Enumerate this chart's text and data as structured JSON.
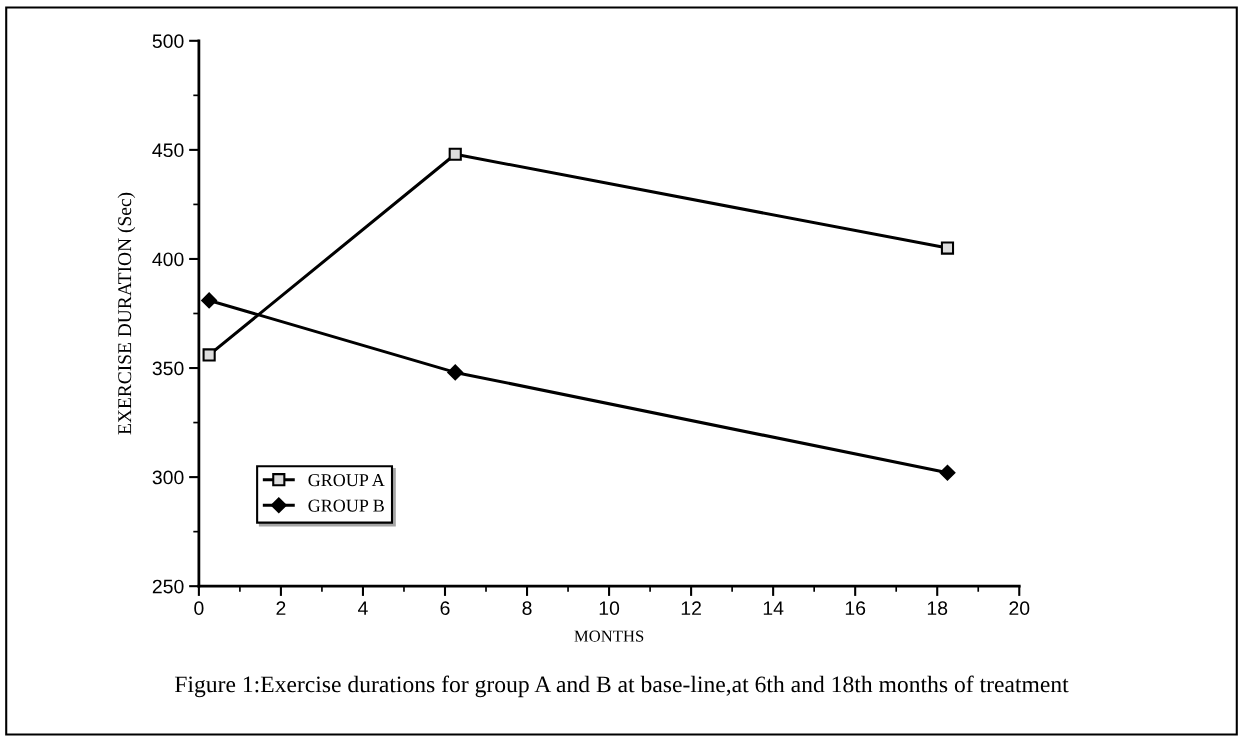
{
  "chart_data": {
    "type": "line",
    "xlabel": "MONTHS",
    "ylabel": "EXERCISE DURATION (Sec)",
    "annotations": [
      "Figure 1:Exercise durations for group A and B at base-line,at 6th and 18th months of treatment"
    ],
    "x": [
      0.25,
      6.25,
      18.25
    ],
    "series": [
      {
        "name": "GROUP A",
        "color": "#000000",
        "values": [
          356,
          448,
          405
        ],
        "marker": "square"
      },
      {
        "name": "GROUP B",
        "color": "#000000",
        "values": [
          381,
          348,
          302
        ],
        "marker": "diamond"
      }
    ],
    "xlim": [
      0,
      20
    ],
    "xticks": [
      0,
      2,
      4,
      6,
      8,
      10,
      12,
      14,
      16,
      18,
      20
    ],
    "ylim": [
      250,
      500
    ],
    "yticks": [
      250,
      300,
      350,
      400,
      450,
      500
    ],
    "grid": false,
    "legend": "bottom left",
    "line_style": "solid"
  }
}
